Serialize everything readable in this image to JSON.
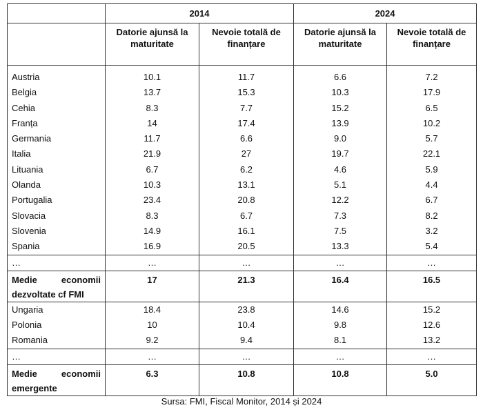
{
  "table": {
    "groups": [
      "2014",
      "2024"
    ],
    "headers": [
      "Datorie ajunsă la maturitate",
      "Nevoie totală de finanțare",
      "Datorie ajunsă la maturitate",
      "Nevoie totală de finanțare"
    ],
    "rows": [
      [
        "Austria",
        "10.1",
        "11.7",
        "6.6",
        "7.2"
      ],
      [
        "Belgia",
        "13.7",
        "15.3",
        "10.3",
        "17.9"
      ],
      [
        "Cehia",
        "8.3",
        "7.7",
        "15.2",
        "6.5"
      ],
      [
        "Franța",
        "14",
        "17.4",
        "13.9",
        "10.2"
      ],
      [
        "Germania",
        "11.7",
        "6.6",
        "9.0",
        "5.7"
      ],
      [
        "Italia",
        "21.9",
        "27",
        "19.7",
        "22.1"
      ],
      [
        "Lituania",
        "6.7",
        "6.2",
        "4.6",
        "5.9"
      ],
      [
        "Olanda",
        "10.3",
        "13.1",
        "5.1",
        "4.4"
      ],
      [
        "Portugalia",
        "23.4",
        "20.8",
        "12.2",
        "6.7"
      ],
      [
        "Slovacia",
        "8.3",
        "6.7",
        "7.3",
        "8.2"
      ],
      [
        "Slovenia",
        "14.9",
        "16.1",
        "7.5",
        "3.2"
      ],
      [
        "Spania",
        "16.9",
        "20.5",
        "13.3",
        "5.4"
      ],
      [
        "…",
        "…",
        "…",
        "…",
        "…"
      ],
      [
        "Medie economii dezvoltate cf FMI",
        "17",
        "21.3",
        "16.4",
        "16.5"
      ],
      [
        "Ungaria",
        "18.4",
        "23.8",
        "14.6",
        "15.2"
      ],
      [
        "Polonia",
        "10",
        "10.4",
        "9.8",
        "12.6"
      ],
      [
        "Romania",
        "9.2",
        "9.4",
        "8.1",
        "13.2"
      ],
      [
        "…",
        "…",
        "…",
        "…",
        "…"
      ],
      [
        "Medie economii emergente",
        "6.3",
        "10.8",
        "10.8",
        "5.0"
      ]
    ]
  },
  "caption": "Sursa: FMI, Fiscal Monitor, 2014 și 2024"
}
